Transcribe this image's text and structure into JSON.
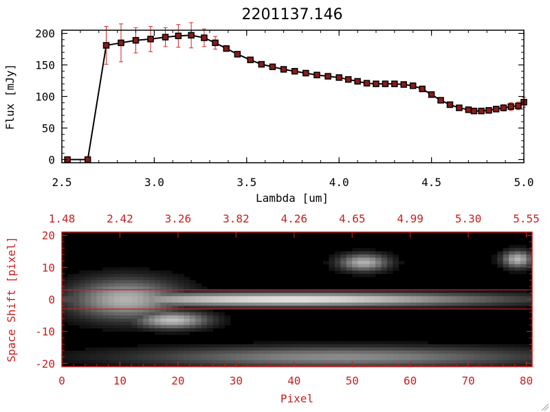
{
  "chart_data": [
    {
      "type": "line",
      "title": "2201137.146",
      "xlabel": "Lambda [um]",
      "ylabel": "Flux [mJy]",
      "xlim": [
        2.5,
        5.0
      ],
      "ylim": [
        -5,
        205
      ],
      "xticks": [
        "2.5",
        "3.0",
        "3.5",
        "4.0",
        "4.5",
        "5.0"
      ],
      "yticks": [
        "0",
        "50",
        "100",
        "150",
        "200"
      ],
      "line_color": "#000000",
      "marker_color": "#8b1a1a",
      "errorbar_color": "#d22020",
      "series": [
        {
          "x": [
            2.53,
            2.64,
            2.74,
            2.82,
            2.9,
            2.98,
            3.06,
            3.13,
            3.2,
            3.27,
            3.33,
            3.39,
            3.45,
            3.52,
            3.58,
            3.64,
            3.7,
            3.76,
            3.82,
            3.88,
            3.94,
            4.0,
            4.05,
            4.1,
            4.15,
            4.2,
            4.25,
            4.3,
            4.35,
            4.4,
            4.45,
            4.5,
            4.55,
            4.6,
            4.65,
            4.7,
            4.73,
            4.77,
            4.81,
            4.85,
            4.89,
            4.93,
            4.97,
            5.0
          ],
          "y": [
            0,
            0,
            181,
            185,
            189,
            191,
            194,
            196,
            197,
            193,
            185,
            176,
            167,
            158,
            151,
            147,
            143,
            140,
            137,
            134,
            132,
            130,
            127,
            124,
            121,
            120,
            120,
            120,
            119,
            117,
            112,
            103,
            94,
            87,
            82,
            79,
            77,
            77,
            78,
            80,
            82,
            84,
            85,
            91
          ],
          "yerr": [
            0,
            0,
            30,
            30,
            20,
            20,
            15,
            18,
            20,
            14,
            10,
            4,
            4,
            3,
            3,
            3,
            3,
            3,
            3,
            3,
            3,
            3,
            3,
            3,
            3,
            3,
            3,
            3,
            3,
            3,
            3,
            3,
            3,
            3,
            3,
            3,
            3,
            3,
            3,
            4,
            5,
            6,
            6,
            8
          ]
        }
      ]
    },
    {
      "type": "heatmap",
      "xlabel": "Pixel",
      "ylabel": "Space Shift [pixel]",
      "xlim": [
        0,
        81
      ],
      "ylim": [
        -21,
        21
      ],
      "xticks": [
        "0",
        "10",
        "20",
        "30",
        "40",
        "50",
        "60",
        "70",
        "80"
      ],
      "yticks": [
        "-20",
        "-10",
        "0",
        "10",
        "20"
      ],
      "top_axis_ticks": [
        "1.48",
        "2.42",
        "3.26",
        "3.82",
        "4.26",
        "4.65",
        "4.99",
        "5.30",
        "5.55"
      ],
      "aperture_lines": [
        3,
        -3
      ],
      "axis_color": "#c81e1e",
      "bright_regions": [
        {
          "x0": 5,
          "x1": 73,
          "y0": -2,
          "y1": 2,
          "peak": 0.92
        },
        {
          "x0": 2,
          "x1": 20,
          "y0": -6,
          "y1": 6,
          "peak": 0.7
        },
        {
          "x0": 13,
          "x1": 25,
          "y0": -9,
          "y1": -4,
          "peak": 0.75
        },
        {
          "x0": 15,
          "x1": 81,
          "y0": -21,
          "y1": -15,
          "peak": 0.55
        },
        {
          "x0": 48,
          "x1": 56,
          "y0": 9,
          "y1": 14,
          "peak": 0.7
        },
        {
          "x0": 76,
          "x1": 81,
          "y0": 10,
          "y1": 15,
          "peak": 0.72
        }
      ]
    }
  ]
}
